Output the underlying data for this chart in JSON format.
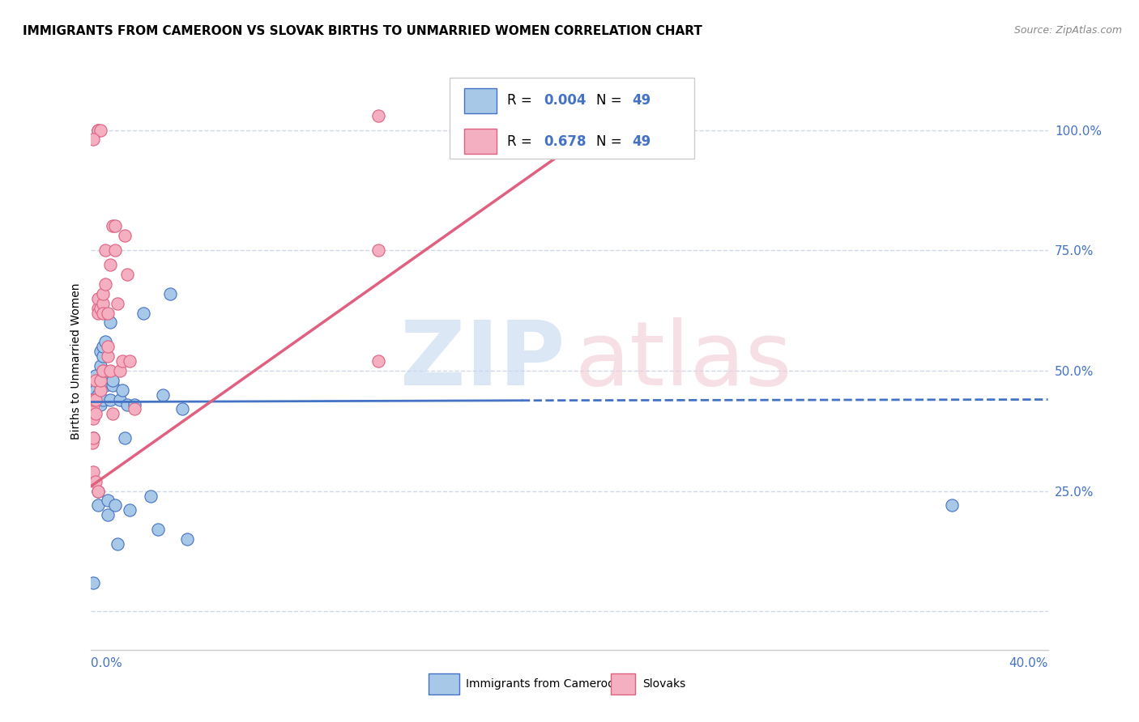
{
  "title": "IMMIGRANTS FROM CAMEROON VS SLOVAK BIRTHS TO UNMARRIED WOMEN CORRELATION CHART",
  "source": "Source: ZipAtlas.com",
  "ylabel": "Births to Unmarried Women",
  "ytick_vals": [
    0.0,
    0.25,
    0.5,
    0.75,
    1.0
  ],
  "ytick_labels": [
    "",
    "25.0%",
    "50.0%",
    "75.0%",
    "100.0%"
  ],
  "xlim": [
    0.0,
    0.4
  ],
  "ylim": [
    -0.08,
    1.12
  ],
  "color_blue": "#a8c8e8",
  "color_blue_dark": "#4472c4",
  "color_pink": "#f4b0c0",
  "color_pink_dark": "#e06080",
  "watermark_zip": "ZIP",
  "watermark_atlas": "atlas",
  "blue_scatter_x": [
    0.0005,
    0.001,
    0.001,
    0.001,
    0.0015,
    0.0015,
    0.002,
    0.002,
    0.002,
    0.002,
    0.002,
    0.003,
    0.003,
    0.003,
    0.003,
    0.003,
    0.003,
    0.004,
    0.004,
    0.004,
    0.004,
    0.005,
    0.005,
    0.005,
    0.006,
    0.006,
    0.006,
    0.007,
    0.007,
    0.008,
    0.008,
    0.009,
    0.009,
    0.01,
    0.011,
    0.012,
    0.013,
    0.014,
    0.015,
    0.016,
    0.018,
    0.022,
    0.025,
    0.028,
    0.03,
    0.033,
    0.038,
    0.04,
    0.36
  ],
  "blue_scatter_y": [
    0.42,
    0.06,
    0.44,
    0.36,
    0.45,
    0.47,
    0.48,
    0.44,
    0.49,
    0.44,
    0.46,
    0.22,
    0.25,
    0.43,
    0.44,
    0.48,
    0.45,
    0.43,
    0.47,
    0.51,
    0.54,
    0.53,
    0.44,
    0.55,
    0.47,
    0.56,
    0.48,
    0.23,
    0.2,
    0.44,
    0.6,
    0.47,
    0.48,
    0.22,
    0.14,
    0.44,
    0.46,
    0.36,
    0.43,
    0.21,
    0.43,
    0.62,
    0.24,
    0.17,
    0.45,
    0.66,
    0.42,
    0.15,
    0.22
  ],
  "pink_scatter_x": [
    0.0005,
    0.001,
    0.001,
    0.001,
    0.001,
    0.001,
    0.002,
    0.002,
    0.002,
    0.002,
    0.003,
    0.003,
    0.003,
    0.003,
    0.004,
    0.004,
    0.004,
    0.005,
    0.005,
    0.005,
    0.005,
    0.005,
    0.006,
    0.006,
    0.007,
    0.007,
    0.007,
    0.008,
    0.008,
    0.009,
    0.009,
    0.01,
    0.01,
    0.011,
    0.012,
    0.013,
    0.014,
    0.015,
    0.016,
    0.018,
    0.003,
    0.003,
    0.004,
    0.12,
    0.12,
    0.12,
    0.18,
    0.22,
    0.001
  ],
  "pink_scatter_y": [
    0.35,
    0.43,
    0.44,
    0.4,
    0.36,
    0.29,
    0.41,
    0.48,
    0.44,
    0.27,
    0.63,
    0.65,
    0.62,
    0.25,
    0.46,
    0.48,
    0.63,
    0.5,
    0.64,
    0.66,
    0.62,
    0.5,
    0.68,
    0.75,
    0.53,
    0.55,
    0.62,
    0.5,
    0.72,
    0.8,
    0.41,
    0.8,
    0.75,
    0.64,
    0.5,
    0.52,
    0.78,
    0.7,
    0.52,
    0.42,
    1.0,
    1.0,
    1.0,
    0.52,
    0.75,
    1.03,
    1.0,
    1.03,
    0.98
  ],
  "blue_line_x": [
    0.0,
    0.4
  ],
  "blue_line_y": [
    0.435,
    0.44
  ],
  "pink_line_x": [
    0.0,
    0.225
  ],
  "pink_line_y": [
    0.26,
    1.05
  ],
  "grid_color": "#d0d8e8",
  "grid_linestyle": "--"
}
